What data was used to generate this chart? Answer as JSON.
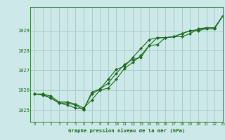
{
  "title": "Graphe pression niveau de la mer (hPa)",
  "background_color": "#cce8e8",
  "grid_color": "#aacccc",
  "line_color": "#1a6b1a",
  "marker_color": "#1a6b1a",
  "xlim": [
    -0.5,
    23
  ],
  "ylim": [
    1024.4,
    1030.2
  ],
  "xticks": [
    0,
    1,
    2,
    3,
    4,
    5,
    6,
    7,
    8,
    9,
    10,
    11,
    12,
    13,
    14,
    15,
    16,
    17,
    18,
    19,
    20,
    21,
    22,
    23
  ],
  "yticks": [
    1025,
    1026,
    1027,
    1028,
    1029
  ],
  "series": [
    [
      1025.8,
      1025.8,
      1025.7,
      1025.4,
      1025.4,
      1025.3,
      1025.1,
      1025.5,
      1026.0,
      1026.1,
      1026.55,
      1027.1,
      1027.4,
      1027.75,
      1028.25,
      1028.3,
      1028.65,
      1028.7,
      1028.85,
      1029.0,
      1029.0,
      1029.1,
      1029.1,
      1029.75
    ],
    [
      1025.8,
      1025.8,
      1025.6,
      1025.35,
      1025.35,
      1025.25,
      1025.0,
      1025.9,
      1026.05,
      1026.55,
      1027.05,
      1027.2,
      1027.65,
      1028.1,
      1028.55,
      1028.65,
      1028.65,
      1028.7,
      1028.7,
      1028.85,
      1029.1,
      1029.15,
      1029.15,
      1029.75
    ],
    [
      1025.8,
      1025.75,
      1025.6,
      1025.35,
      1025.25,
      1025.1,
      1025.05,
      1025.8,
      1026.05,
      1026.35,
      1026.85,
      1027.3,
      1027.55,
      1027.65,
      1028.25,
      1028.65,
      1028.65,
      1028.7,
      1028.85,
      1029.0,
      1029.05,
      1029.15,
      1029.15,
      1029.75
    ]
  ]
}
